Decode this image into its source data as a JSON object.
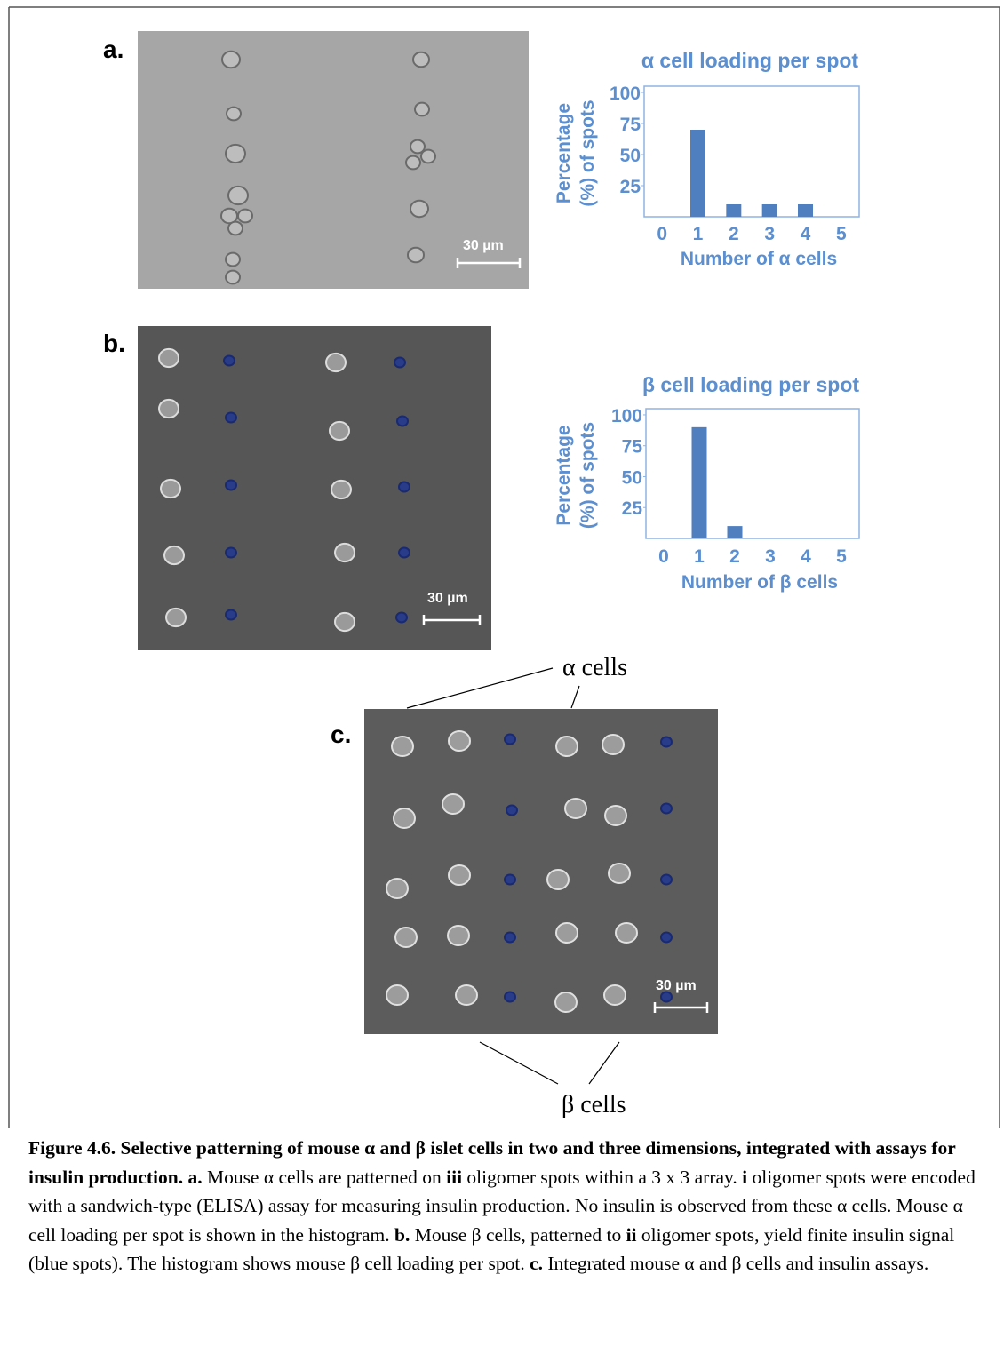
{
  "panels": {
    "a": "a.",
    "b": "b.",
    "c": "c."
  },
  "scale_bars": {
    "a": "30 µm",
    "b": "30 µm",
    "c": "30 µm"
  },
  "annotations": {
    "alpha_cells": "α cells",
    "beta_cells": "β cells"
  },
  "chart_data": [
    {
      "type": "bar",
      "title": "α cell loading per spot",
      "y_label": [
        "Percentage",
        "(%) of spots"
      ],
      "x_label": "Number of α cells",
      "categories": [
        "0",
        "1",
        "2",
        "3",
        "4",
        "5"
      ],
      "values": [
        0,
        70,
        10,
        10,
        10,
        0
      ],
      "color": "#4f7fbf",
      "ylim": [
        0,
        105
      ],
      "yticks": [
        25,
        50,
        75,
        100
      ]
    },
    {
      "type": "bar",
      "title": "β cell loading per spot",
      "y_label": [
        "Percentage",
        "(%) of spots"
      ],
      "x_label": "Number of β cells",
      "categories": [
        "0",
        "1",
        "2",
        "3",
        "4",
        "5"
      ],
      "values": [
        0,
        90,
        10,
        0,
        0,
        0
      ],
      "color": "#4f7fbf",
      "ylim": [
        0,
        105
      ],
      "yticks": [
        25,
        50,
        75,
        100
      ]
    }
  ],
  "caption": {
    "runs": [
      "Figure 4.6.  Selective patterning of mouse α and β islet cells in two and three dimensions, integrated with assays for insulin production.  a.",
      " Mouse α cells are patterned on ",
      "iii",
      " oligomer spots within a 3 x 3 array.  ",
      "i",
      " oligomer spots were encoded with a sandwich-type (ELISA) assay for measuring insulin production.  No insulin is observed from these α cells.  Mouse α cell loading per spot is shown in the histogram. ",
      "b.",
      " Mouse β cells, patterned to ",
      "ii",
      " oligomer spots, yield finite insulin signal (blue spots).  The histogram shows mouse β cell loading per spot. ",
      "c.",
      " Integrated mouse α and β cells and insulin assays."
    ]
  }
}
